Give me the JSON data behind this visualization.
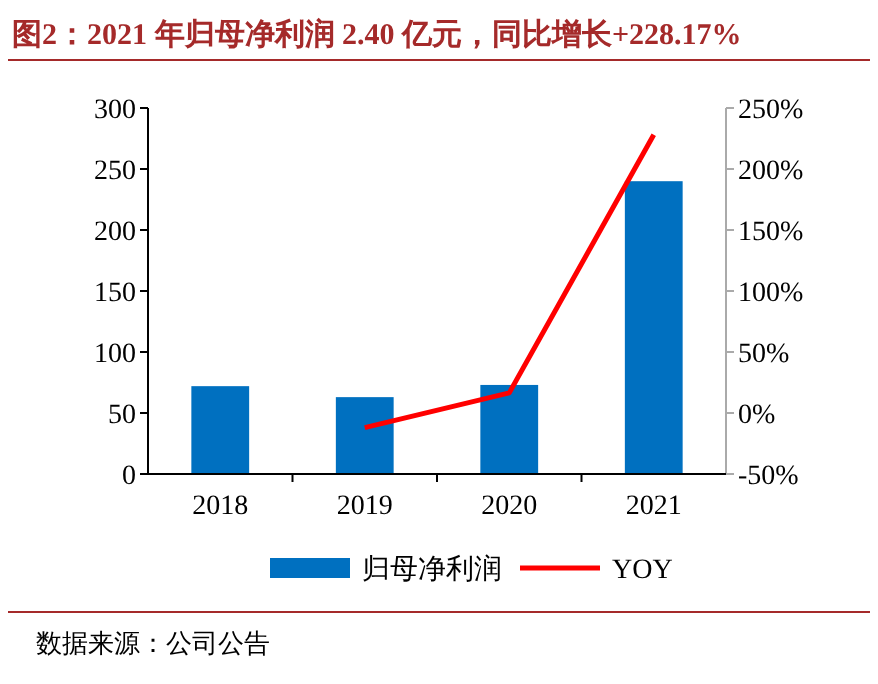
{
  "chart_data": {
    "type": "bar",
    "title": "图2：2021 年归母净利润 2.40 亿元，同比增长+228.17%",
    "categories": [
      "2018",
      "2019",
      "2020",
      "2021"
    ],
    "series": [
      {
        "name": "归母净利润",
        "color": "#0070c0",
        "values": [
          72,
          63,
          73,
          240
        ]
      },
      {
        "name": "YOY",
        "type": "line",
        "axis": "y2",
        "color": "#ff0000",
        "values": [
          null,
          -12,
          16.5,
          228
        ]
      }
    ],
    "ylim": [
      0,
      300
    ],
    "yticks": [
      0,
      50,
      100,
      150,
      200,
      250,
      300
    ],
    "y2lim": [
      -50,
      250
    ],
    "y2ticks": [
      {
        "value": -50,
        "label": "-50%"
      },
      {
        "value": 0,
        "label": "0%"
      },
      {
        "value": 50,
        "label": "50%"
      },
      {
        "value": 100,
        "label": "100%"
      },
      {
        "value": 150,
        "label": "150%"
      },
      {
        "value": 200,
        "label": "200%"
      },
      {
        "value": 250,
        "label": "250%"
      }
    ],
    "legend": "bottom",
    "marker": "none",
    "grid": false,
    "annotations": [
      "数据来源：公司公告"
    ]
  }
}
